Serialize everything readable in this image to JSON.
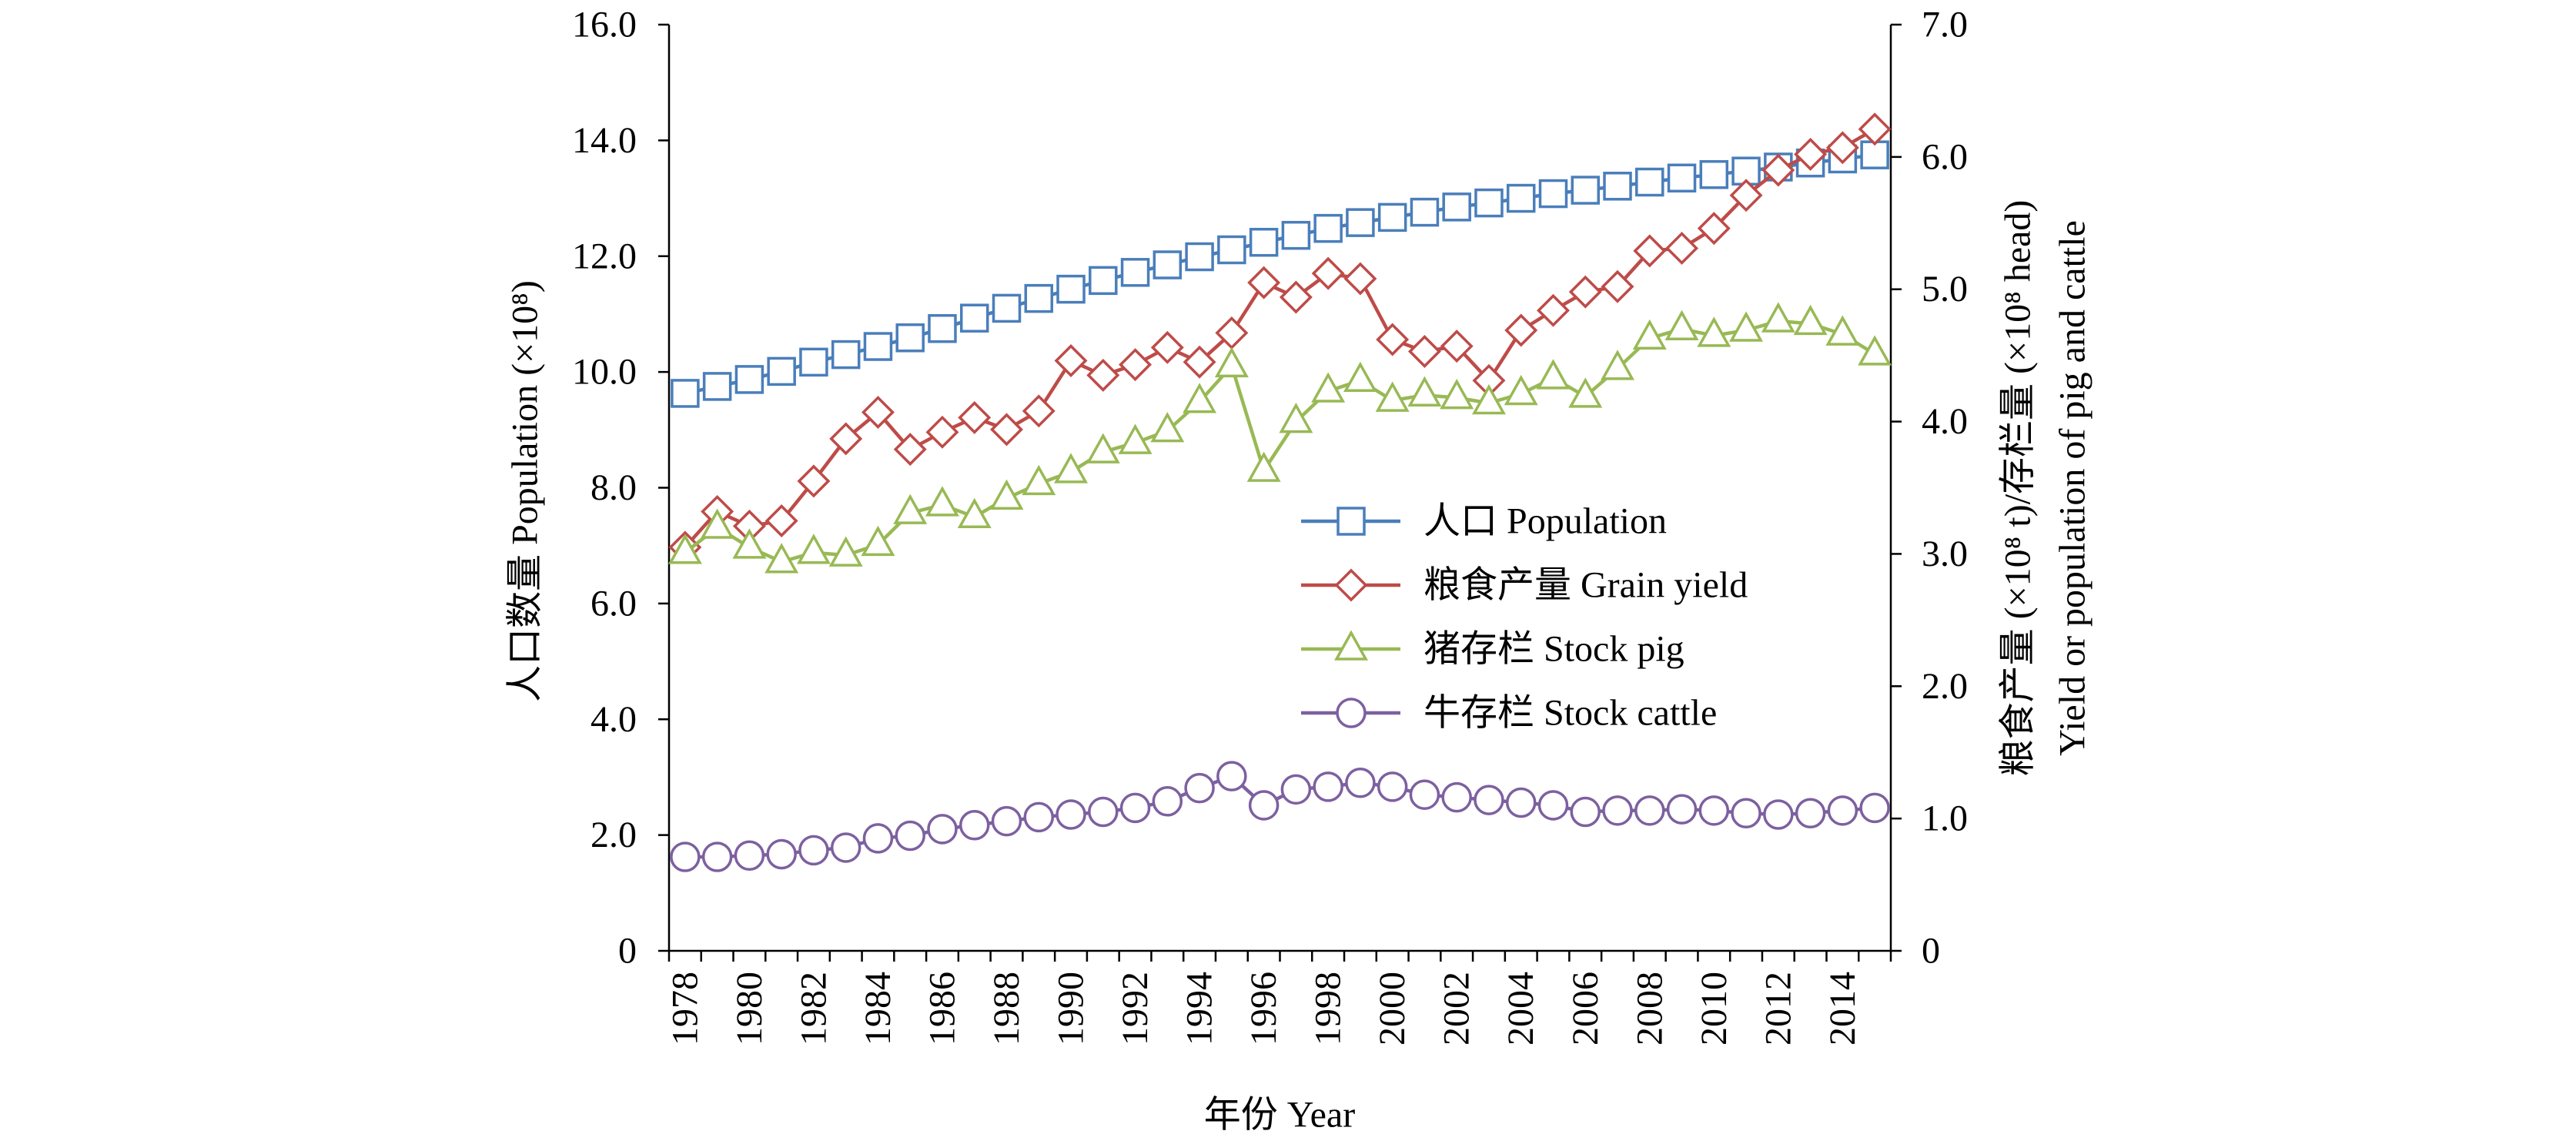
{
  "chart_data": {
    "type": "line",
    "xlabel": "年份 Year",
    "ylabel_left": "人口数量 Population (×10⁸)",
    "ylabel_right": [
      "粮食产量 (×10⁸ t)/存栏量 (×10⁸ head)",
      "Yield or population of pig and cattle"
    ],
    "legend_position": "center-right",
    "grid": false,
    "x": [
      1978,
      1979,
      1980,
      1981,
      1982,
      1983,
      1984,
      1985,
      1986,
      1987,
      1988,
      1989,
      1990,
      1991,
      1992,
      1993,
      1994,
      1995,
      1996,
      1997,
      1998,
      1999,
      2000,
      2001,
      2002,
      2003,
      2004,
      2005,
      2006,
      2007,
      2008,
      2009,
      2010,
      2011,
      2012,
      2013,
      2014,
      2015
    ],
    "x_tick_labels": [
      "1978",
      "1980",
      "1982",
      "1984",
      "1986",
      "1988",
      "1990",
      "1992",
      "1994",
      "1996",
      "1998",
      "2000",
      "2002",
      "2004",
      "2006",
      "2008",
      "2010",
      "2012",
      "2014"
    ],
    "y_left": {
      "lim": [
        0,
        16
      ],
      "ticks": [
        "0",
        "2.0",
        "4.0",
        "6.0",
        "8.0",
        "10.0",
        "12.0",
        "14.0",
        "16.0"
      ],
      "series": [
        {
          "name": "人口 Population",
          "marker": "square",
          "color": "#4A7EBB",
          "values": [
            9.63,
            9.75,
            9.87,
            10.01,
            10.17,
            10.3,
            10.44,
            10.59,
            10.75,
            10.93,
            11.1,
            11.27,
            11.43,
            11.58,
            11.72,
            11.85,
            11.99,
            12.11,
            12.24,
            12.36,
            12.48,
            12.58,
            12.67,
            12.76,
            12.85,
            12.92,
            13.0,
            13.08,
            13.14,
            13.21,
            13.28,
            13.35,
            13.41,
            13.47,
            13.54,
            13.61,
            13.68,
            13.75
          ]
        }
      ]
    },
    "y_right": {
      "lim": [
        0,
        7
      ],
      "ticks": [
        "0",
        "1.0",
        "2.0",
        "3.0",
        "4.0",
        "5.0",
        "6.0",
        "7.0"
      ],
      "series": [
        {
          "name": "粮食产量 Grain yield",
          "marker": "diamond",
          "color": "#BE4B48",
          "values": [
            3.05,
            3.32,
            3.21,
            3.25,
            3.55,
            3.87,
            4.07,
            3.79,
            3.92,
            4.03,
            3.94,
            4.08,
            4.46,
            4.35,
            4.43,
            4.56,
            4.45,
            4.67,
            5.05,
            4.94,
            5.12,
            5.08,
            4.62,
            4.53,
            4.57,
            4.31,
            4.69,
            4.84,
            4.98,
            5.02,
            5.29,
            5.31,
            5.46,
            5.71,
            5.9,
            6.02,
            6.07,
            6.21
          ]
        },
        {
          "name": "猪存栏 Stock pig",
          "marker": "triangle",
          "color": "#98B954",
          "values": [
            3.01,
            3.2,
            3.05,
            2.94,
            3.01,
            2.99,
            3.07,
            3.31,
            3.37,
            3.28,
            3.42,
            3.53,
            3.62,
            3.77,
            3.84,
            3.93,
            4.15,
            4.42,
            3.63,
            4.0,
            4.23,
            4.31,
            4.16,
            4.2,
            4.18,
            4.14,
            4.21,
            4.33,
            4.19,
            4.4,
            4.63,
            4.7,
            4.65,
            4.69,
            4.76,
            4.74,
            4.66,
            4.51
          ]
        },
        {
          "name": "牛存栏 Stock cattle",
          "marker": "circle",
          "color": "#7D60A0",
          "values": [
            0.71,
            0.71,
            0.72,
            0.73,
            0.76,
            0.78,
            0.85,
            0.87,
            0.92,
            0.95,
            0.98,
            1.01,
            1.03,
            1.05,
            1.08,
            1.13,
            1.23,
            1.32,
            1.1,
            1.22,
            1.24,
            1.27,
            1.24,
            1.18,
            1.16,
            1.14,
            1.12,
            1.1,
            1.05,
            1.06,
            1.06,
            1.07,
            1.06,
            1.04,
            1.03,
            1.04,
            1.06,
            1.08
          ]
        }
      ]
    }
  }
}
